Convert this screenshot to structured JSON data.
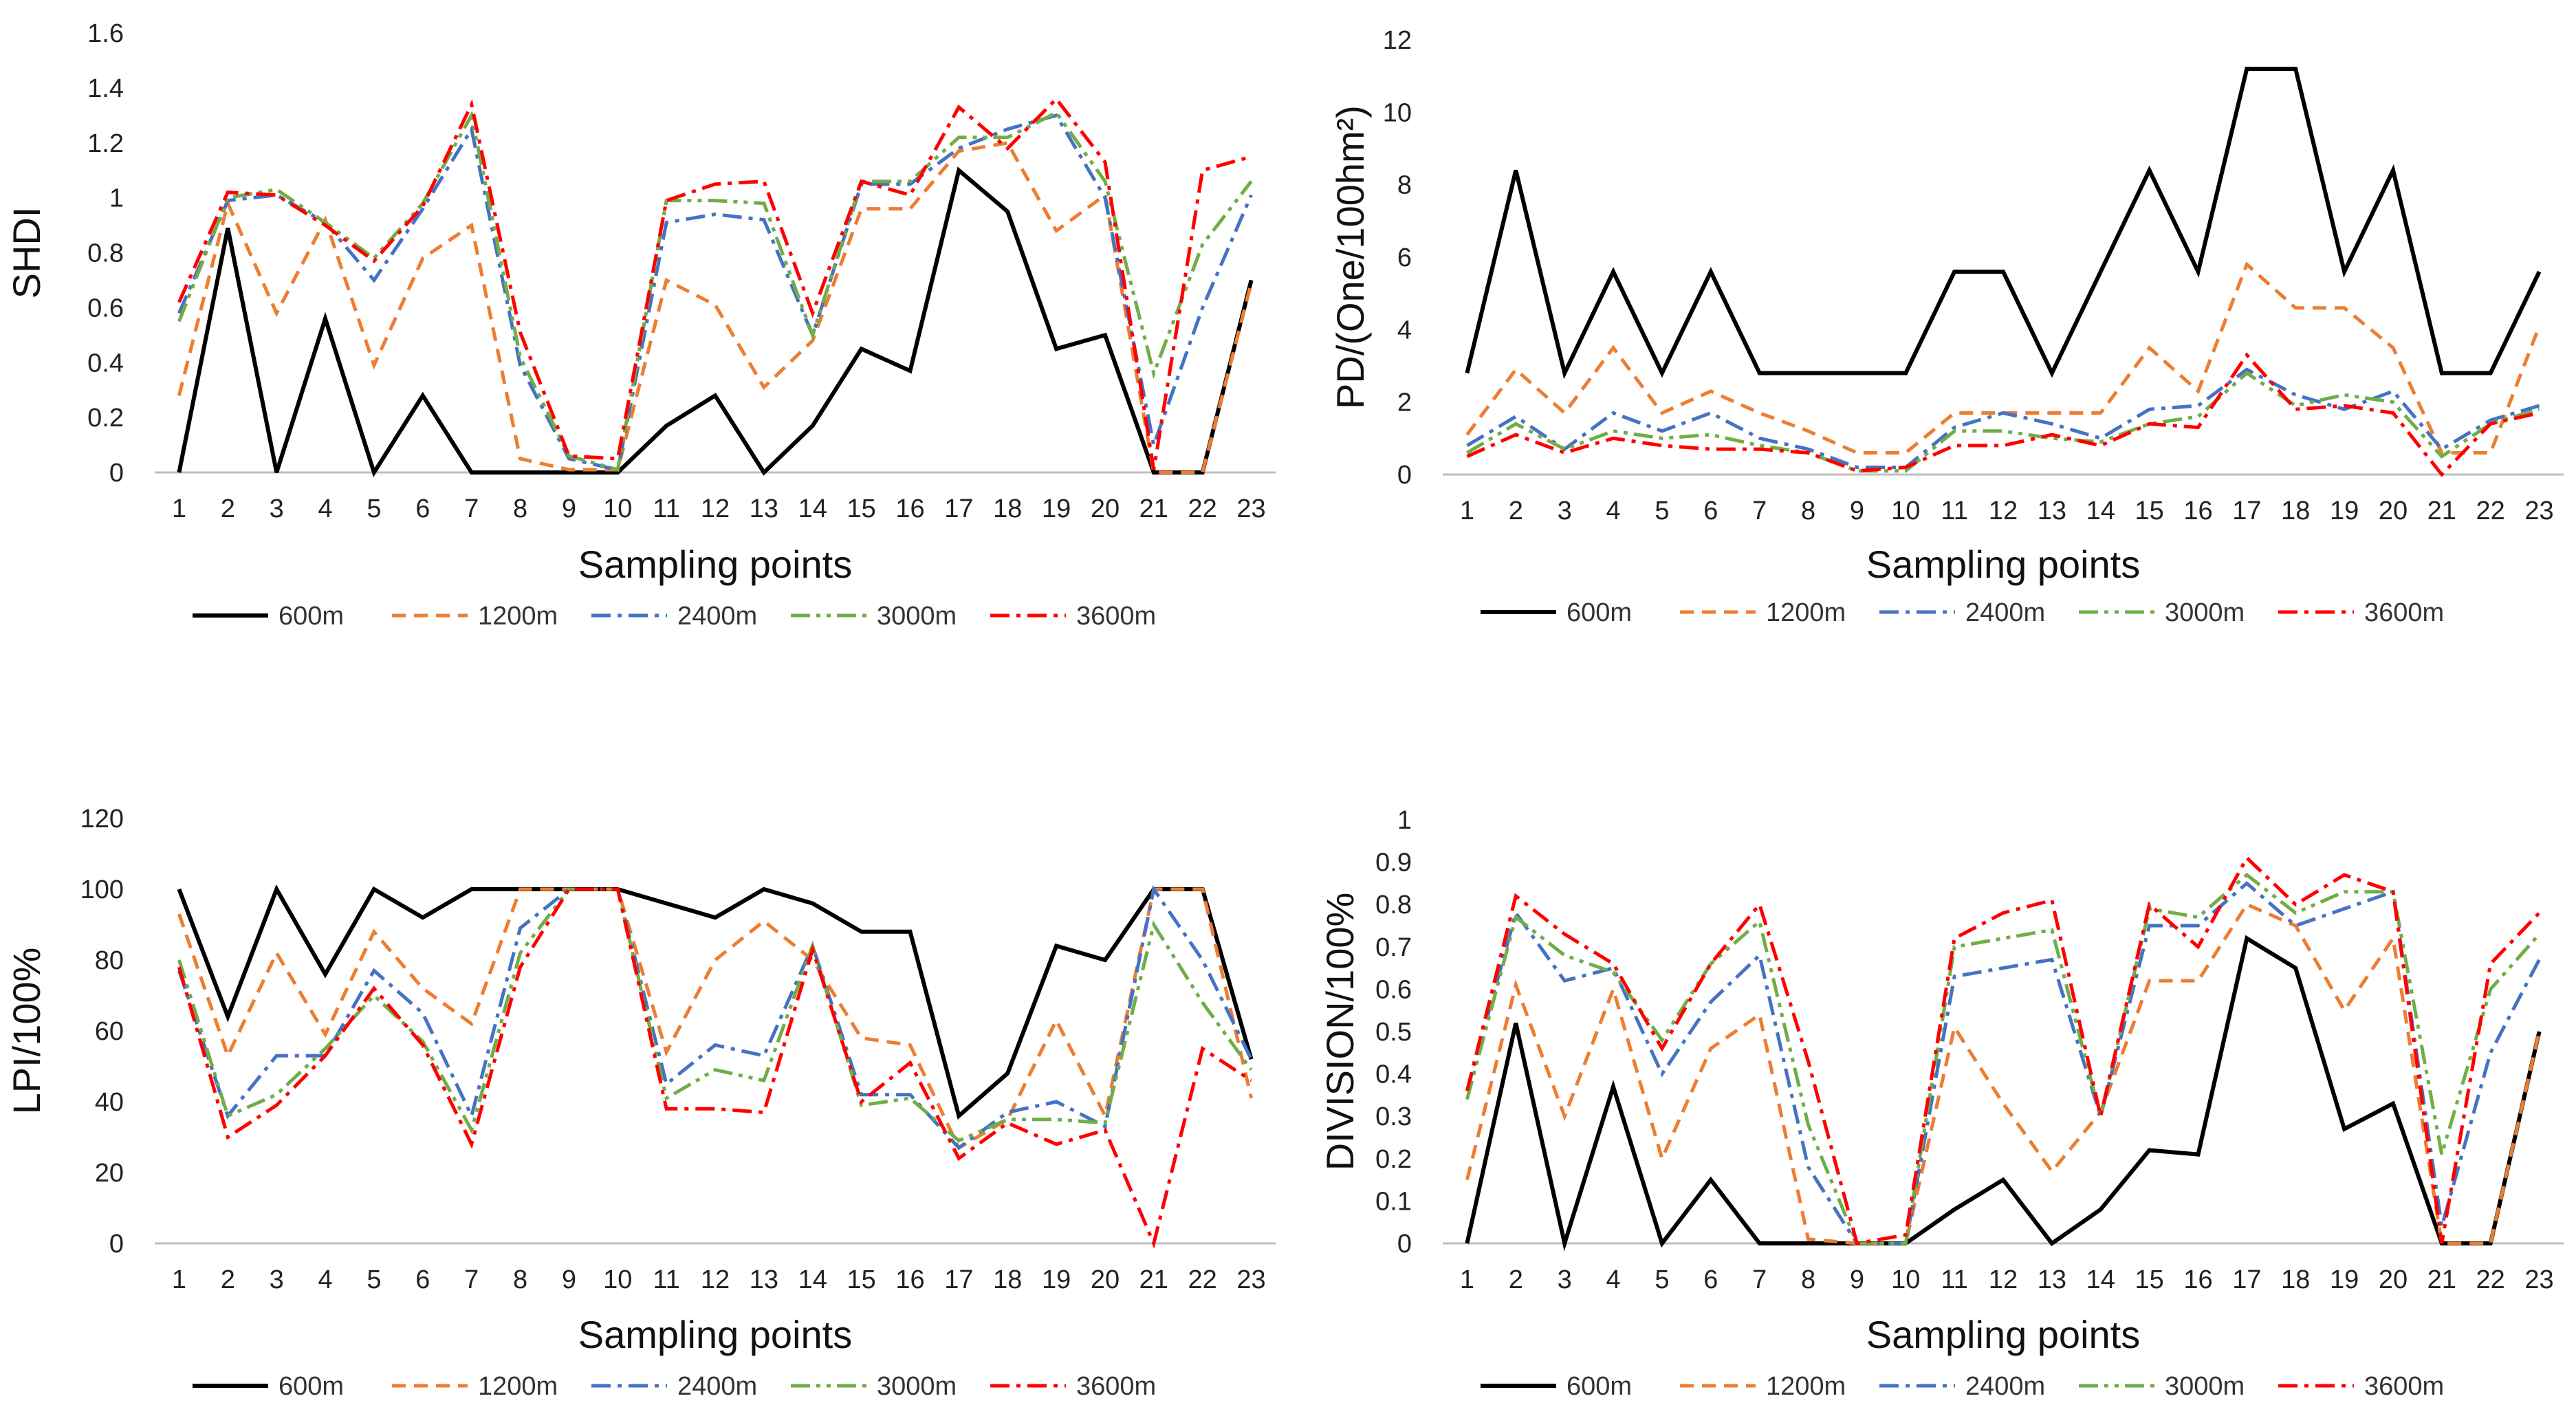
{
  "chart_data": [
    {
      "type": "line",
      "id": "shdi",
      "title": "",
      "xlabel": "Sampling points",
      "ylabel": "SHDI",
      "ylim": [
        0,
        1.6
      ],
      "yticks": [
        "0",
        "0.2",
        "0.4",
        "0.6",
        "0.8",
        "1",
        "1.2",
        "1.4",
        "1.6"
      ],
      "categories": [
        "1",
        "2",
        "3",
        "4",
        "5",
        "6",
        "7",
        "8",
        "9",
        "10",
        "11",
        "12",
        "13",
        "14",
        "15",
        "16",
        "17",
        "18",
        "19",
        "20",
        "21",
        "22",
        "23"
      ],
      "legend": "bottom",
      "series": [
        {
          "name": "600m",
          "color": "#000000",
          "dash": "solid",
          "values": [
            0,
            0.89,
            0,
            0.56,
            0,
            0.28,
            0,
            0,
            0,
            0,
            0.17,
            0.28,
            0,
            0.17,
            0.45,
            0.37,
            1.1,
            0.95,
            0.45,
            0.5,
            0,
            0,
            0.7
          ]
        },
        {
          "name": "1200m",
          "color": "#ed7d31",
          "dash": "dash",
          "values": [
            0.28,
            0.98,
            0.58,
            0.92,
            0.39,
            0.78,
            0.9,
            0.05,
            0.01,
            0.01,
            0.7,
            0.61,
            0.31,
            0.48,
            0.96,
            0.96,
            1.17,
            1.2,
            0.88,
            1.01,
            0,
            0,
            0.69
          ]
        },
        {
          "name": "2400m",
          "color": "#4472c4",
          "dash": "dashdot",
          "values": [
            0.58,
            0.99,
            1.01,
            0.91,
            0.7,
            0.96,
            1.25,
            0.39,
            0.05,
            0.01,
            0.91,
            0.94,
            0.92,
            0.5,
            1.05,
            1.05,
            1.18,
            1.25,
            1.3,
            1.0,
            0.1,
            0.6,
            1.01
          ]
        },
        {
          "name": "3000m",
          "color": "#70ad47",
          "dash": "dashdotdot",
          "values": [
            0.55,
            1.0,
            1.03,
            0.91,
            0.78,
            0.98,
            1.3,
            0.42,
            0.06,
            0.01,
            0.99,
            0.99,
            0.98,
            0.5,
            1.06,
            1.06,
            1.22,
            1.22,
            1.31,
            1.06,
            0.36,
            0.83,
            1.06
          ]
        },
        {
          "name": "3600m",
          "color": "#ff0000",
          "dash": "dashdot",
          "values": [
            0.62,
            1.02,
            1.01,
            0.9,
            0.77,
            0.97,
            1.34,
            0.51,
            0.06,
            0.05,
            0.99,
            1.05,
            1.06,
            0.58,
            1.06,
            1.01,
            1.33,
            1.18,
            1.36,
            1.13,
            0.01,
            1.1,
            1.15
          ]
        }
      ]
    },
    {
      "type": "line",
      "id": "pd",
      "title": "",
      "xlabel": "Sampling points",
      "ylabel": "PD/(One/100hm²)",
      "ylim": [
        0,
        12
      ],
      "yticks": [
        "0",
        "2",
        "4",
        "6",
        "8",
        "10",
        "12"
      ],
      "categories": [
        "1",
        "2",
        "3",
        "4",
        "5",
        "6",
        "7",
        "8",
        "9",
        "10",
        "11",
        "12",
        "13",
        "14",
        "15",
        "16",
        "17",
        "18",
        "19",
        "20",
        "21",
        "22",
        "23"
      ],
      "legend": "bottom",
      "series": [
        {
          "name": "600m",
          "color": "#000000",
          "dash": "solid",
          "values": [
            2.8,
            8.4,
            2.8,
            5.6,
            2.8,
            5.6,
            2.8,
            2.8,
            2.8,
            2.8,
            5.6,
            5.6,
            2.8,
            5.6,
            8.4,
            5.6,
            11.2,
            11.2,
            5.6,
            8.4,
            2.8,
            2.8,
            5.6
          ]
        },
        {
          "name": "1200m",
          "color": "#ed7d31",
          "dash": "dash",
          "values": [
            1.1,
            2.9,
            1.7,
            3.5,
            1.7,
            2.3,
            1.7,
            1.2,
            0.6,
            0.6,
            1.7,
            1.7,
            1.7,
            1.7,
            3.5,
            2.3,
            5.8,
            4.6,
            4.6,
            3.5,
            0.6,
            0.6,
            4.1
          ]
        },
        {
          "name": "2400m",
          "color": "#4472c4",
          "dash": "dashdot",
          "values": [
            0.8,
            1.6,
            0.7,
            1.7,
            1.2,
            1.7,
            1.0,
            0.7,
            0.2,
            0.2,
            1.3,
            1.7,
            1.4,
            1.0,
            1.8,
            1.9,
            2.9,
            2.2,
            1.8,
            2.3,
            0.7,
            1.5,
            1.9
          ]
        },
        {
          "name": "3000m",
          "color": "#70ad47",
          "dash": "dashdotdot",
          "values": [
            0.6,
            1.4,
            0.7,
            1.2,
            1.0,
            1.1,
            0.8,
            0.6,
            0.1,
            0.1,
            1.2,
            1.2,
            1.0,
            0.9,
            1.4,
            1.6,
            2.8,
            1.9,
            2.2,
            2.0,
            0.5,
            1.4,
            1.8
          ]
        },
        {
          "name": "3600m",
          "color": "#ff0000",
          "dash": "dashdot",
          "values": [
            0.5,
            1.1,
            0.6,
            1.0,
            0.8,
            0.7,
            0.7,
            0.6,
            0.1,
            0.2,
            0.8,
            0.8,
            1.1,
            0.8,
            1.4,
            1.3,
            3.3,
            1.8,
            1.9,
            1.7,
            0.0,
            1.4,
            1.7
          ]
        }
      ]
    },
    {
      "type": "line",
      "id": "lpi",
      "title": "",
      "xlabel": "Sampling points",
      "ylabel": "LPI/100%",
      "ylim": [
        0,
        120
      ],
      "yticks": [
        "0",
        "20",
        "40",
        "60",
        "80",
        "100",
        "120"
      ],
      "categories": [
        "1",
        "2",
        "3",
        "4",
        "5",
        "6",
        "7",
        "8",
        "9",
        "10",
        "11",
        "12",
        "13",
        "14",
        "15",
        "16",
        "17",
        "18",
        "19",
        "20",
        "21",
        "22",
        "23"
      ],
      "legend": "bottom",
      "series": [
        {
          "name": "600m",
          "color": "#000000",
          "dash": "solid",
          "values": [
            100,
            64,
            100,
            76,
            100,
            92,
            100,
            100,
            100,
            100,
            96,
            92,
            100,
            96,
            88,
            88,
            36,
            48,
            84,
            80,
            100,
            100,
            52
          ]
        },
        {
          "name": "1200m",
          "color": "#ed7d31",
          "dash": "dash",
          "values": [
            93,
            53,
            82,
            59,
            88,
            72,
            62,
            100,
            100,
            100,
            54,
            80,
            91,
            80,
            58,
            56,
            27,
            35,
            63,
            36,
            100,
            100,
            41
          ]
        },
        {
          "name": "2400m",
          "color": "#4472c4",
          "dash": "dashdot",
          "values": [
            77,
            36,
            53,
            53,
            77,
            65,
            36,
            89,
            100,
            100,
            45,
            56,
            53,
            84,
            42,
            42,
            27,
            37,
            40,
            33,
            100,
            80,
            52
          ]
        },
        {
          "name": "3000m",
          "color": "#70ad47",
          "dash": "dashdotdot",
          "values": [
            80,
            36,
            42,
            55,
            70,
            57,
            32,
            82,
            100,
            100,
            41,
            49,
            46,
            84,
            39,
            41,
            29,
            35,
            35,
            34,
            90,
            68,
            49
          ]
        },
        {
          "name": "3600m",
          "color": "#ff0000",
          "dash": "dashdot",
          "values": [
            78,
            30,
            39,
            53,
            72,
            56,
            28,
            78,
            100,
            100,
            38,
            38,
            37,
            83,
            40,
            51,
            24,
            34,
            28,
            32,
            0,
            55,
            46
          ]
        }
      ]
    },
    {
      "type": "line",
      "id": "division",
      "title": "",
      "xlabel": "Sampling points",
      "ylabel": "DIVISION/100%",
      "ylim": [
        0,
        1
      ],
      "yticks": [
        "0",
        "0.1",
        "0.2",
        "0.3",
        "0.4",
        "0.5",
        "0.6",
        "0.7",
        "0.8",
        "0.9",
        "1"
      ],
      "categories": [
        "1",
        "2",
        "3",
        "4",
        "5",
        "6",
        "7",
        "8",
        "9",
        "10",
        "11",
        "12",
        "13",
        "14",
        "15",
        "16",
        "17",
        "18",
        "19",
        "20",
        "21",
        "22",
        "23"
      ],
      "legend": "bottom",
      "series": [
        {
          "name": "600m",
          "color": "#000000",
          "dash": "solid",
          "values": [
            0,
            0.52,
            0,
            0.37,
            0,
            0.15,
            0,
            0,
            0,
            0,
            0.08,
            0.15,
            0,
            0.08,
            0.22,
            0.21,
            0.72,
            0.65,
            0.27,
            0.33,
            0,
            0,
            0.5
          ]
        },
        {
          "name": "1200m",
          "color": "#ed7d31",
          "dash": "dash",
          "values": [
            0.15,
            0.61,
            0.3,
            0.6,
            0.2,
            0.46,
            0.54,
            0.01,
            0,
            0,
            0.51,
            0.33,
            0.17,
            0.31,
            0.62,
            0.62,
            0.8,
            0.75,
            0.55,
            0.72,
            0,
            0,
            0.5
          ]
        },
        {
          "name": "2400m",
          "color": "#4472c4",
          "dash": "dashdot",
          "values": [
            0.36,
            0.78,
            0.62,
            0.65,
            0.4,
            0.57,
            0.68,
            0.18,
            0,
            0,
            0.63,
            0.65,
            0.67,
            0.3,
            0.75,
            0.75,
            0.85,
            0.75,
            0.79,
            0.83,
            0.04,
            0.45,
            0.67
          ]
        },
        {
          "name": "3000m",
          "color": "#70ad47",
          "dash": "dashdotdot",
          "values": [
            0.34,
            0.77,
            0.68,
            0.64,
            0.48,
            0.66,
            0.76,
            0.28,
            0,
            0,
            0.7,
            0.72,
            0.74,
            0.3,
            0.79,
            0.77,
            0.87,
            0.78,
            0.83,
            0.83,
            0.21,
            0.6,
            0.73
          ]
        },
        {
          "name": "3600m",
          "color": "#ff0000",
          "dash": "dashdot",
          "values": [
            0.36,
            0.82,
            0.73,
            0.66,
            0.46,
            0.66,
            0.8,
            0.43,
            0,
            0.02,
            0.72,
            0.78,
            0.81,
            0.3,
            0.8,
            0.7,
            0.91,
            0.8,
            0.87,
            0.83,
            0,
            0.66,
            0.78
          ]
        }
      ]
    }
  ]
}
